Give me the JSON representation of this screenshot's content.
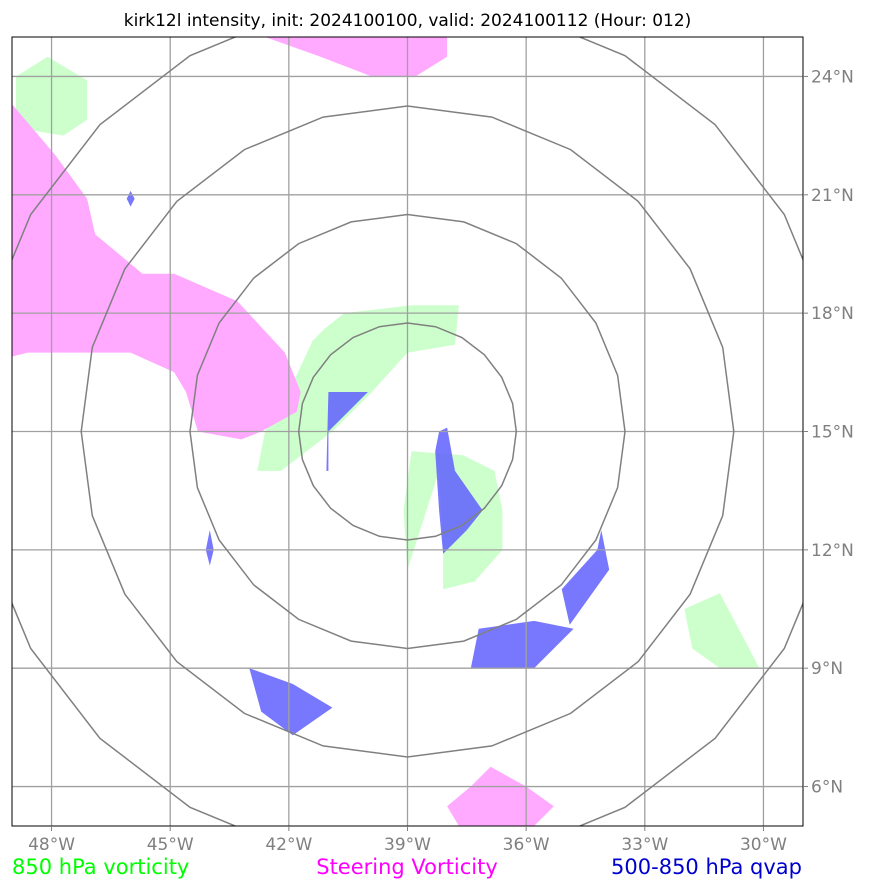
{
  "chart_data": {
    "type": "map",
    "title": "kirk12l intensity, init: 2024100100, valid: 2024100112 (Hour: 012)",
    "xlim": [
      -49,
      -29
    ],
    "ylim": [
      5,
      25
    ],
    "x_ticks": [
      {
        "value": -48,
        "label": "48°W"
      },
      {
        "value": -45,
        "label": "45°W"
      },
      {
        "value": -42,
        "label": "42°W"
      },
      {
        "value": -39,
        "label": "39°W"
      },
      {
        "value": -36,
        "label": "36°W"
      },
      {
        "value": -33,
        "label": "33°W"
      },
      {
        "value": -30,
        "label": "30°W"
      }
    ],
    "y_ticks": [
      {
        "value": 24,
        "label": "24°N"
      },
      {
        "value": 21,
        "label": "21°N"
      },
      {
        "value": 18,
        "label": "18°N"
      },
      {
        "value": 15,
        "label": "15°N"
      },
      {
        "value": 12,
        "label": "12°N"
      },
      {
        "value": 9,
        "label": "9°N"
      },
      {
        "value": 6,
        "label": "6°N"
      }
    ],
    "grid": true,
    "range_rings": {
      "center": [
        -39,
        15
      ],
      "radii_deg": [
        2.75,
        5.5,
        8.25,
        11.0
      ]
    },
    "legend": [
      {
        "label": "850 hPa vorticity",
        "color": "#00ff00"
      },
      {
        "label": "Steering Vorticity",
        "color": "#ff00ff"
      },
      {
        "label": "500-850 hPa qvap",
        "color": "#0000cd"
      }
    ],
    "series": [
      {
        "name": "850 hPa vorticity",
        "fill": "#ccffcc",
        "polygons": [
          [
            [
              -48.9,
              22.7
            ],
            [
              -48.9,
              24.0
            ],
            [
              -48.1,
              24.5
            ],
            [
              -47.1,
              23.9
            ],
            [
              -47.1,
              22.9
            ],
            [
              -47.7,
              22.5
            ]
          ],
          [
            [
              -41.4,
              17.3
            ],
            [
              -42.0,
              16.0
            ],
            [
              -42.6,
              15.0
            ],
            [
              -42.8,
              14.0
            ],
            [
              -42.2,
              14.0
            ],
            [
              -40.9,
              15.0
            ],
            [
              -39.9,
              16.0
            ],
            [
              -39.0,
              17.0
            ],
            [
              -37.8,
              17.2
            ],
            [
              -37.7,
              18.2
            ],
            [
              -38.9,
              18.2
            ],
            [
              -40.6,
              18.0
            ],
            [
              -41.1,
              17.6
            ]
          ],
          [
            [
              -38.2,
              14.0
            ],
            [
              -38.1,
              12.0
            ],
            [
              -38.1,
              11.0
            ],
            [
              -37.3,
              11.2
            ],
            [
              -36.6,
              12.0
            ],
            [
              -36.6,
              13.0
            ],
            [
              -36.8,
              14.0
            ],
            [
              -37.6,
              14.4
            ],
            [
              -38.9,
              14.5
            ],
            [
              -39.1,
              13.0
            ],
            [
              -39.0,
              11.5
            ]
          ],
          [
            [
              -32.0,
              10.5
            ],
            [
              -31.1,
              10.9
            ],
            [
              -30.1,
              9.0
            ],
            [
              -31.1,
              9.0
            ],
            [
              -31.8,
              9.5
            ]
          ]
        ]
      },
      {
        "name": "Steering Vorticity",
        "fill": "#ffaaff",
        "polygons": [
          [
            [
              -42.6,
              25.0
            ],
            [
              -38.0,
              25.0
            ],
            [
              -38.0,
              24.5
            ],
            [
              -38.8,
              24.0
            ],
            [
              -39.9,
              24.0
            ],
            [
              -41.2,
              24.5
            ]
          ],
          [
            [
              -49.0,
              23.3
            ],
            [
              -47.9,
              22.0
            ],
            [
              -47.1,
              20.9
            ],
            [
              -46.9,
              20.0
            ],
            [
              -45.7,
              19.0
            ],
            [
              -44.9,
              19.0
            ],
            [
              -43.3,
              18.3
            ],
            [
              -42.1,
              17.0
            ],
            [
              -41.7,
              16.0
            ],
            [
              -41.8,
              15.5
            ],
            [
              -42.7,
              15.0
            ],
            [
              -43.2,
              14.8
            ],
            [
              -44.3,
              15.0
            ],
            [
              -44.6,
              16.0
            ],
            [
              -44.9,
              16.5
            ],
            [
              -46.0,
              17.0
            ],
            [
              -47.0,
              17.0
            ],
            [
              -48.6,
              17.0
            ],
            [
              -49.0,
              16.9
            ]
          ],
          [
            [
              -37.7,
              5.0
            ],
            [
              -35.8,
              5.0
            ],
            [
              -35.3,
              5.5
            ],
            [
              -36.0,
              6.0
            ],
            [
              -36.9,
              6.5
            ],
            [
              -37.4,
              6.0
            ],
            [
              -38.0,
              5.5
            ]
          ]
        ]
      },
      {
        "name": "500-850 hPa qvap",
        "fill": "#6060ff",
        "polygons": [
          [
            [
              -41.0,
              16.0
            ],
            [
              -40.0,
              16.0
            ],
            [
              -40.5,
              15.5
            ],
            [
              -41.0,
              15.0
            ],
            [
              -41.0,
              14.0
            ],
            [
              -41.05,
              14.0
            ]
          ],
          [
            [
              -38.0,
              15.1
            ],
            [
              -37.8,
              14.0
            ],
            [
              -37.1,
              13.0
            ],
            [
              -37.5,
              12.5
            ],
            [
              -38.0,
              12.0
            ],
            [
              -38.1,
              11.9
            ],
            [
              -38.2,
              13.0
            ],
            [
              -38.3,
              14.5
            ],
            [
              -38.2,
              15.0
            ]
          ],
          [
            [
              -34.1,
              12.5
            ],
            [
              -33.9,
              11.5
            ],
            [
              -34.9,
              10.1
            ],
            [
              -35.1,
              11.0
            ],
            [
              -34.2,
              12.0
            ]
          ],
          [
            [
              -37.2,
              10.0
            ],
            [
              -35.8,
              10.2
            ],
            [
              -34.8,
              10.0
            ],
            [
              -35.8,
              9.0
            ],
            [
              -37.4,
              9.0
            ]
          ],
          [
            [
              -46.0,
              21.1
            ],
            [
              -46.1,
              20.9
            ],
            [
              -46.0,
              20.7
            ],
            [
              -45.9,
              20.9
            ]
          ],
          [
            [
              -44.0,
              12.5
            ],
            [
              -43.9,
              12.0
            ],
            [
              -44.0,
              11.6
            ],
            [
              -44.1,
              12.0
            ]
          ],
          [
            [
              -43.0,
              9.0
            ],
            [
              -41.9,
              8.6
            ],
            [
              -40.9,
              8.0
            ],
            [
              -41.9,
              7.3
            ],
            [
              -42.7,
              7.9
            ]
          ]
        ]
      }
    ]
  }
}
